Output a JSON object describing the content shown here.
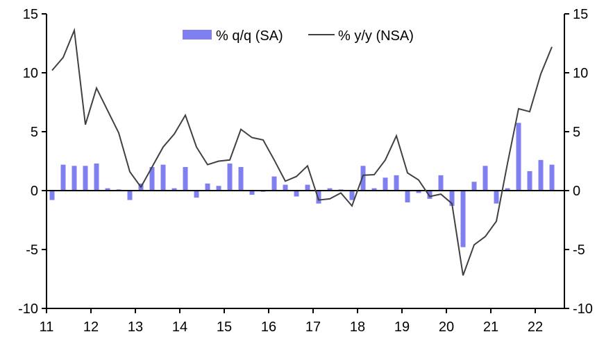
{
  "chart_data": {
    "type": "bar+line",
    "title": "",
    "xlabel": "",
    "ylabel_left": "",
    "ylabel_right": "",
    "ylim": [
      -10,
      15
    ],
    "yticks": [
      15,
      10,
      5,
      0,
      -5,
      -10
    ],
    "ytick_labels": [
      "15",
      "10",
      "5",
      "0",
      "-5",
      "-10"
    ],
    "xtick_labels": [
      "11",
      "12",
      "13",
      "14",
      "15",
      "16",
      "17",
      "18",
      "19",
      "20",
      "21",
      "22"
    ],
    "x_start_year": 2011,
    "periods_per_year": 4,
    "grid": false,
    "legend_position": "top-center",
    "colors": {
      "bar": "#7f7ff2",
      "line": "#404040",
      "axis": "#000000"
    },
    "series": [
      {
        "name": "% q/q (SA)",
        "type": "bar",
        "values": [
          -0.8,
          2.2,
          2.1,
          2.1,
          2.3,
          0.2,
          0.1,
          -0.8,
          0.6,
          2.0,
          2.2,
          0.2,
          2.0,
          -0.6,
          0.6,
          0.4,
          2.3,
          2.0,
          -0.35,
          -0.1,
          1.2,
          0.5,
          -0.5,
          0.5,
          -1.1,
          0.2,
          0.1,
          -0.8,
          2.1,
          0.2,
          1.1,
          1.3,
          -1.0,
          -0.2,
          -0.7,
          1.3,
          -1.3,
          -4.8,
          0.75,
          2.1,
          -1.1,
          0.2,
          5.75,
          1.65,
          2.6,
          2.2
        ]
      },
      {
        "name": "% y/y (NSA)",
        "type": "line",
        "values": [
          10.2,
          11.3,
          13.6,
          5.6,
          8.7,
          6.8,
          4.9,
          1.6,
          0.3,
          2.0,
          3.7,
          4.8,
          6.4,
          3.7,
          2.2,
          2.5,
          2.6,
          5.2,
          4.5,
          4.3,
          2.6,
          0.8,
          1.2,
          2.1,
          -0.8,
          -0.7,
          -0.2,
          -1.3,
          1.3,
          1.35,
          2.6,
          4.65,
          1.5,
          0.9,
          -0.5,
          -0.3,
          -1.1,
          -7.2,
          -4.6,
          -3.9,
          -2.6,
          2.3,
          6.95,
          6.7,
          9.9,
          12.2
        ]
      }
    ]
  }
}
